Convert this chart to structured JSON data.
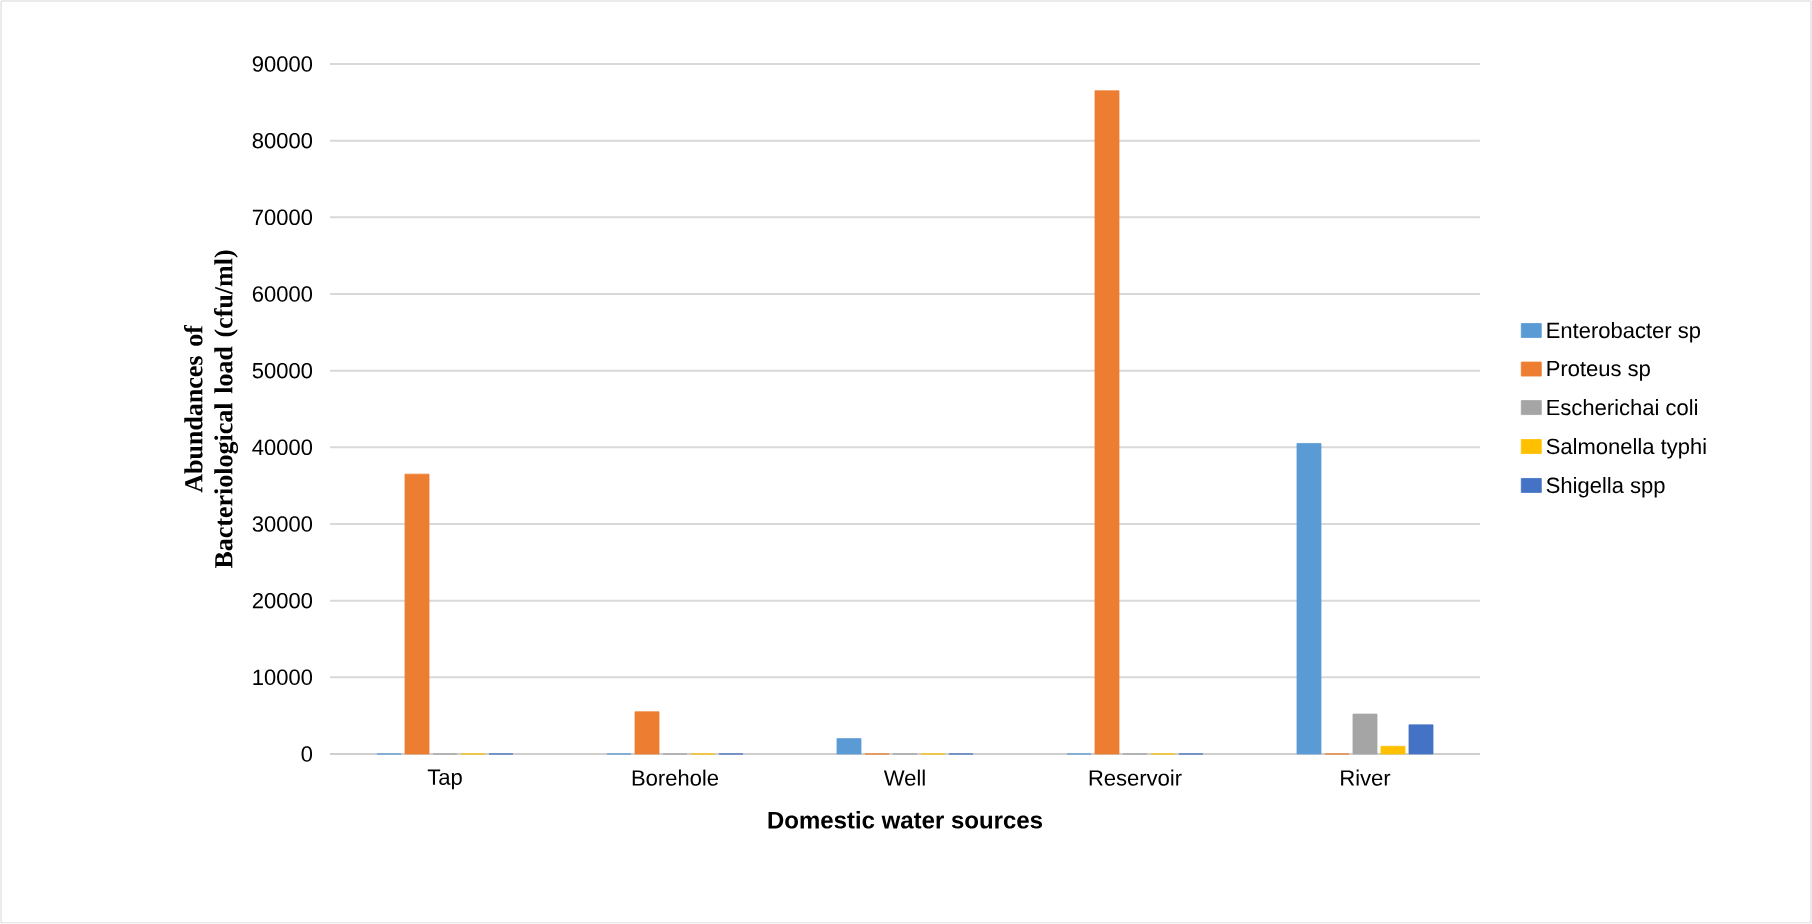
{
  "chart_data": {
    "type": "bar",
    "categories": [
      "Tap",
      "Borehole",
      "Well",
      "Reservoir",
      "River"
    ],
    "xlabel": "Domestic water sources",
    "ylabel": "Abundances of Bacteriological load (cfu/ml)",
    "series": [
      {
        "name": "Enterobacter sp",
        "color": "#5b9bd5",
        "values": [
          0,
          0,
          2000,
          0,
          40500
        ]
      },
      {
        "name": "Proteus sp",
        "color": "#ed7d31",
        "values": [
          36500,
          5500,
          0,
          86500,
          0
        ]
      },
      {
        "name": "Escherichai coli",
        "color": "#a5a5a5",
        "values": [
          0,
          0,
          0,
          0,
          5200
        ]
      },
      {
        "name": "Salmonella typhi",
        "color": "#ffc000",
        "values": [
          0,
          0,
          0,
          0,
          1000
        ]
      },
      {
        "name": "Shigella spp",
        "color": "#4472c4",
        "values": [
          0,
          0,
          0,
          0,
          3800
        ]
      }
    ],
    "ylim": [
      0,
      90000
    ],
    "yticks": [
      0,
      10000,
      20000,
      30000,
      40000,
      50000,
      60000,
      70000,
      80000,
      90000
    ],
    "grid": "y",
    "legend": "right"
  }
}
